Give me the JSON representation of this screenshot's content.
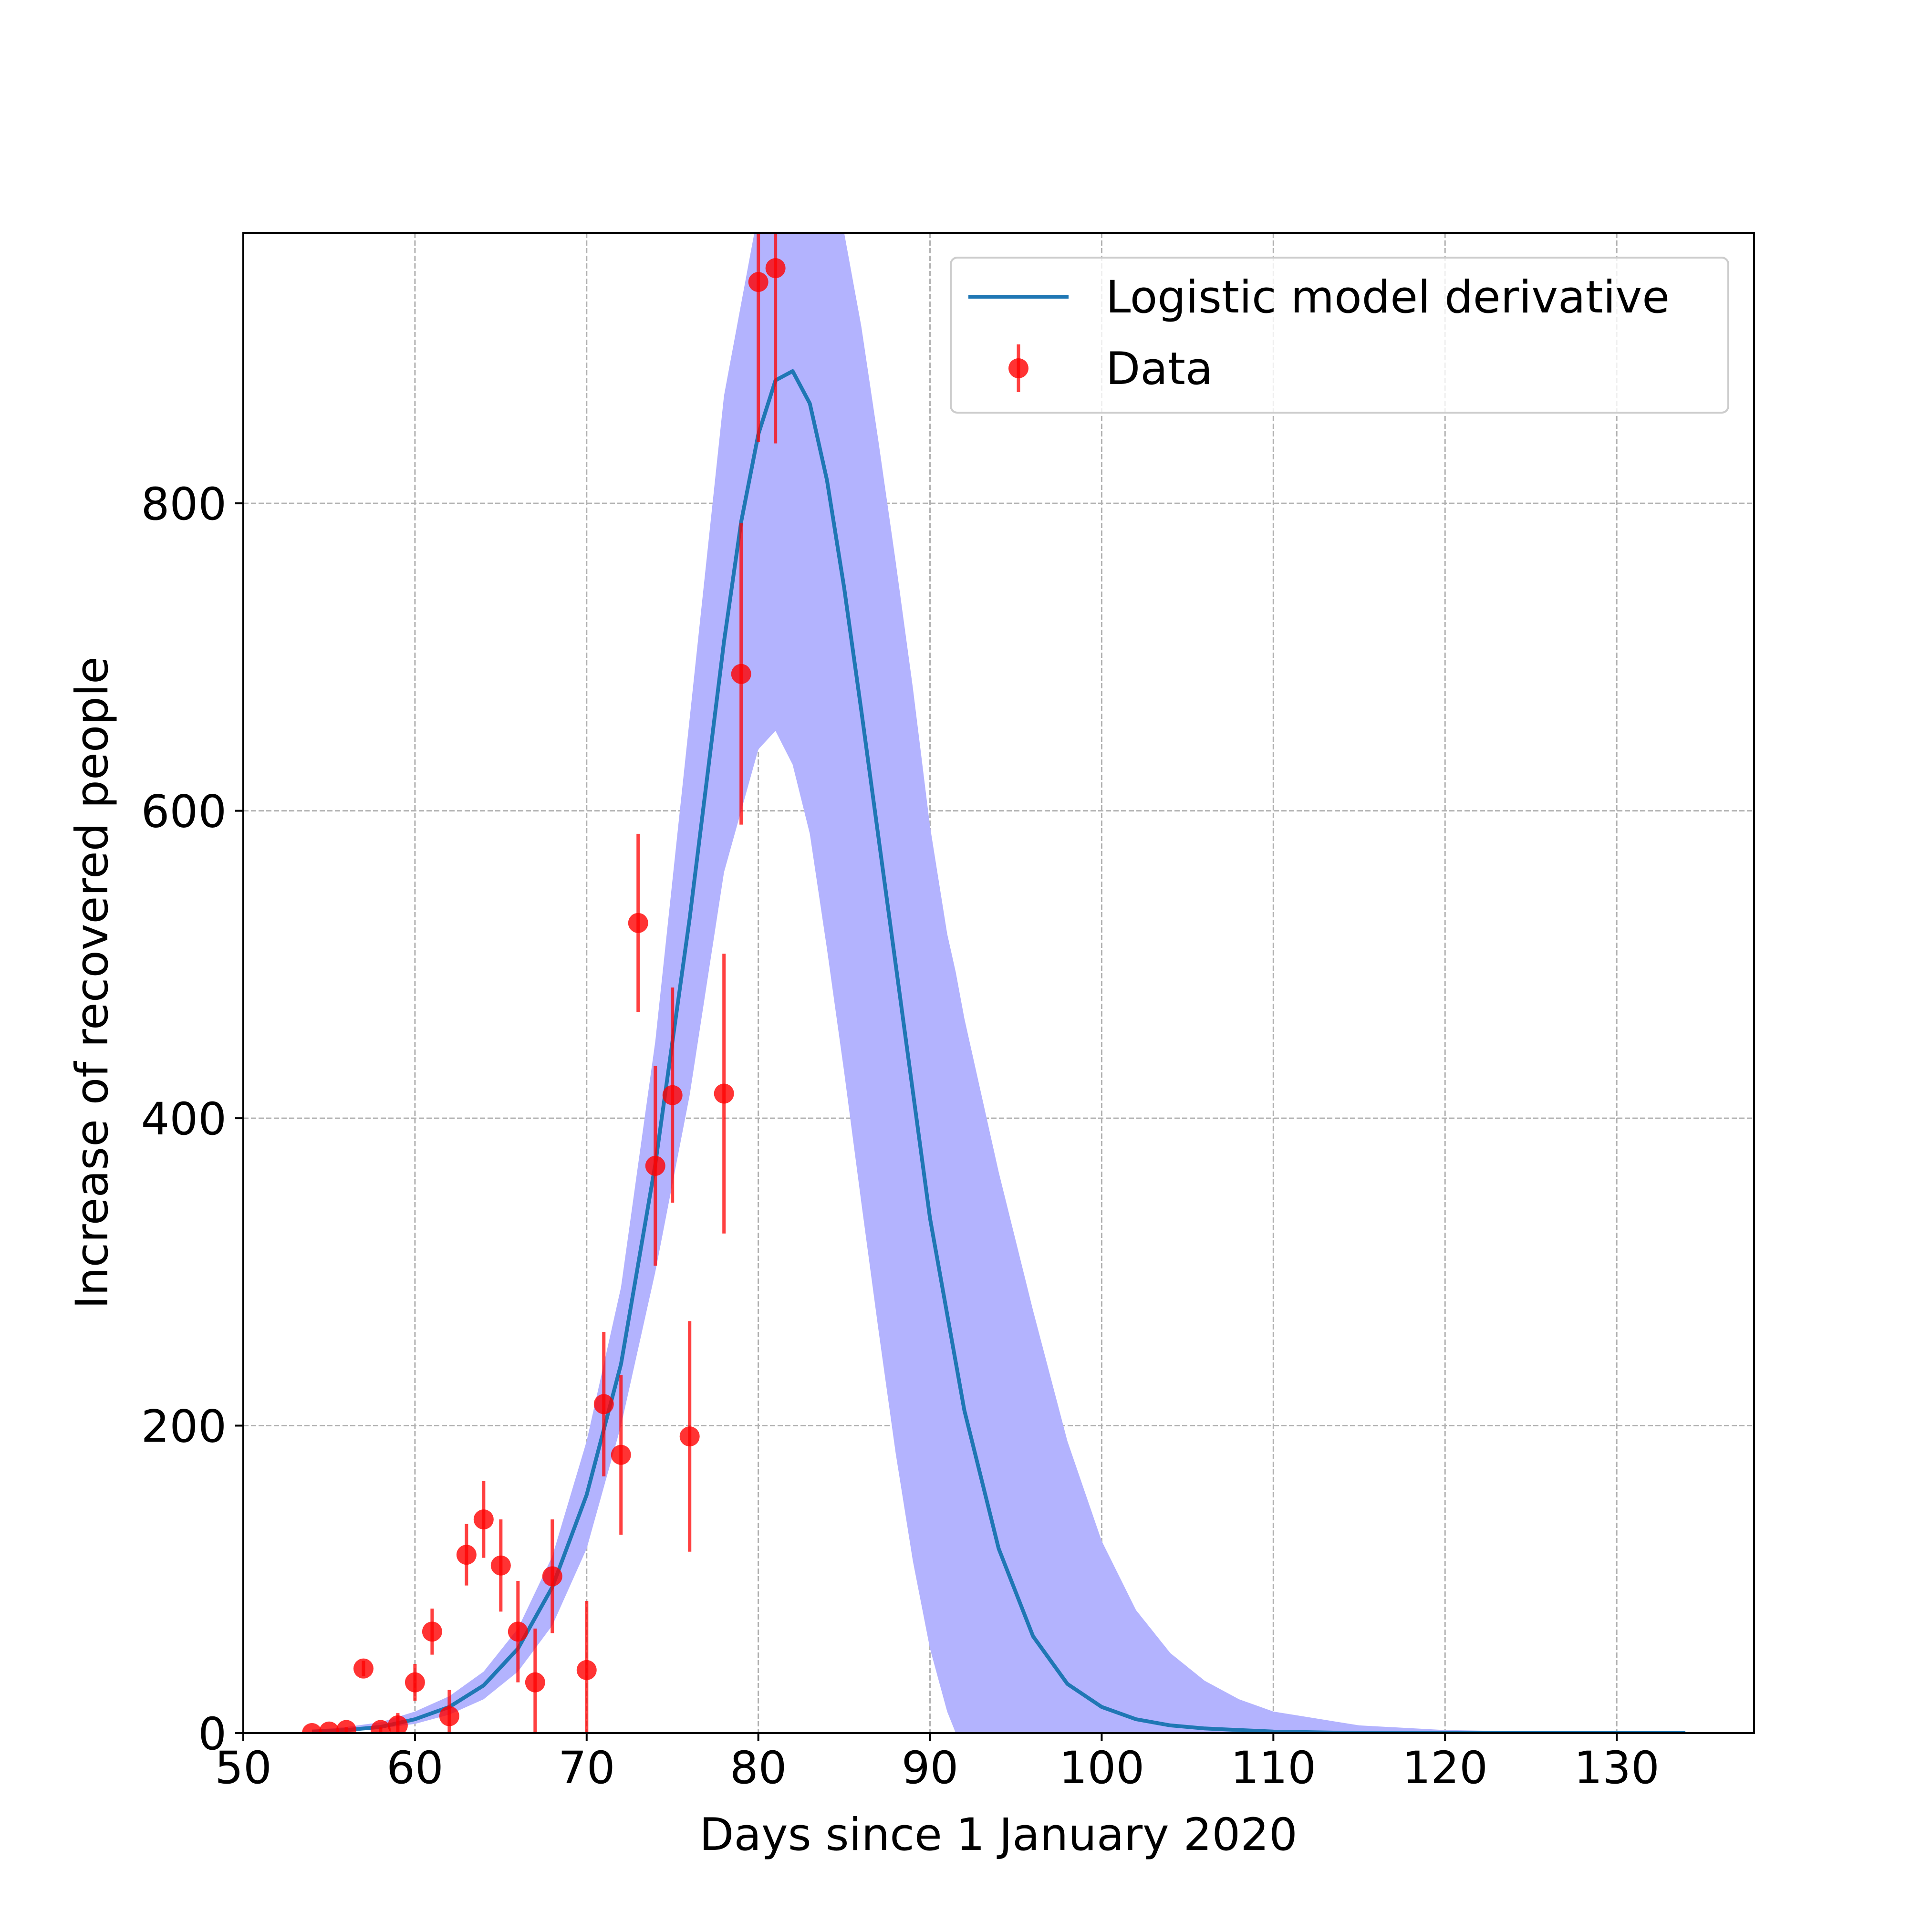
{
  "chart_data": {
    "type": "scatter",
    "title": "",
    "xlabel": "Days since 1 January 2020",
    "ylabel": "Increase of recovered people",
    "xlim": [
      50,
      138
    ],
    "ylim": [
      0,
      976
    ],
    "xticks": [
      50,
      60,
      70,
      80,
      90,
      100,
      110,
      120,
      130
    ],
    "yticks": [
      0,
      200,
      400,
      600,
      800
    ],
    "grid": true,
    "legend_position": "top-right",
    "legend": [
      {
        "label": "Logistic model derivative",
        "kind": "line",
        "color": "#1f77b4"
      },
      {
        "label": "Data",
        "kind": "errorbar",
        "color": "#ff0000"
      }
    ],
    "series": [
      {
        "name": "Data",
        "kind": "errorbar",
        "color": "#ff0000",
        "points": [
          {
            "x": 54,
            "y": 0,
            "err": 0
          },
          {
            "x": 55,
            "y": 1,
            "err": 0
          },
          {
            "x": 56,
            "y": 2,
            "err": 2
          },
          {
            "x": 57,
            "y": 42,
            "err": 5
          },
          {
            "x": 58,
            "y": 2,
            "err": 2
          },
          {
            "x": 59,
            "y": 5,
            "err": 8
          },
          {
            "x": 60,
            "y": 33,
            "err": 12
          },
          {
            "x": 61,
            "y": 66,
            "err": 15
          },
          {
            "x": 62,
            "y": 11,
            "err": 17
          },
          {
            "x": 63,
            "y": 116,
            "err": 20
          },
          {
            "x": 64,
            "y": 139,
            "err": 25
          },
          {
            "x": 65,
            "y": 109,
            "err": 30
          },
          {
            "x": 66,
            "y": 66,
            "err": 33
          },
          {
            "x": 67,
            "y": 33,
            "err": 35
          },
          {
            "x": 68,
            "y": 102,
            "err": 37
          },
          {
            "x": 70,
            "y": 41,
            "err": 45
          },
          {
            "x": 71,
            "y": 214,
            "err": 47
          },
          {
            "x": 72,
            "y": 181,
            "err": 52
          },
          {
            "x": 73,
            "y": 527,
            "err": 58
          },
          {
            "x": 74,
            "y": 369,
            "err": 65
          },
          {
            "x": 75,
            "y": 415,
            "err": 70
          },
          {
            "x": 76,
            "y": 193,
            "err": 75
          },
          {
            "x": 78,
            "y": 416,
            "err": 91
          },
          {
            "x": 79,
            "y": 689,
            "err": 98
          },
          {
            "x": 80,
            "y": 944,
            "err": 104
          },
          {
            "x": 81,
            "y": 953,
            "err": 114
          }
        ]
      },
      {
        "name": "Logistic model derivative",
        "kind": "line",
        "color": "#1f77b4",
        "x": [
          54,
          56,
          58,
          60,
          62,
          64,
          66,
          68,
          70,
          72,
          74,
          76,
          78,
          79,
          80,
          81,
          82,
          83,
          84,
          85,
          86,
          88,
          90,
          92,
          94,
          96,
          98,
          100,
          102,
          104,
          106,
          108,
          110,
          115,
          120,
          125,
          130,
          134
        ],
        "y": [
          1,
          2,
          4,
          9,
          17,
          31,
          55,
          95,
          155,
          240,
          370,
          530,
          710,
          788,
          845,
          880,
          886,
          865,
          815,
          745,
          665,
          500,
          335,
          210,
          120,
          63,
          32,
          17,
          9,
          5,
          3,
          2,
          1,
          0,
          0,
          0,
          0,
          0
        ]
      }
    ],
    "bands": [
      {
        "name": "uncertainty-band",
        "color": "#b3b3fe",
        "x": [
          54,
          56,
          58,
          60,
          62,
          64,
          66,
          68,
          70,
          72,
          74,
          76,
          78,
          80,
          81,
          82,
          83,
          84,
          85,
          86,
          87,
          88,
          89,
          90,
          91,
          91.5,
          92,
          94,
          96,
          98,
          100,
          102,
          104,
          106,
          108,
          110,
          115,
          120,
          125,
          130,
          134
        ],
        "lower": [
          1,
          1,
          3,
          6,
          12,
          22,
          40,
          70,
          120,
          200,
          300,
          415,
          560,
          640,
          652,
          630,
          585,
          510,
          430,
          345,
          262,
          182,
          112,
          55,
          14,
          0,
          0,
          0,
          0,
          0,
          0,
          0,
          0,
          0,
          0,
          0,
          0,
          0,
          0,
          0,
          0
        ],
        "upper": [
          2,
          4,
          7,
          14,
          24,
          40,
          68,
          115,
          190,
          290,
          450,
          660,
          870,
          990,
          1010,
          1010,
          1010,
          1000,
          976,
          915,
          840,
          762,
          680,
          590,
          520,
          495,
          465,
          365,
          275,
          190,
          125,
          80,
          52,
          34,
          22,
          14,
          5,
          2,
          1,
          0,
          0
        ]
      }
    ]
  }
}
